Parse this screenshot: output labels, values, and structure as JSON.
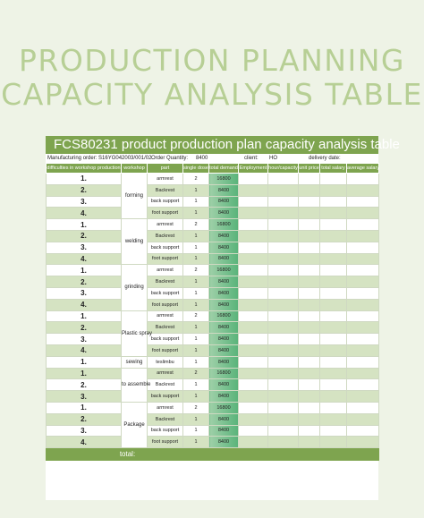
{
  "title": {
    "line1": "PRODUCTION PLANNING",
    "line2": "CAPACITY ANALYSIS TABLE"
  },
  "sheet": {
    "heading": "FCS80231 product production plan capacity analysis table",
    "info": {
      "manufacturing_order": "Manufacturing order: S16YG042003/001/02",
      "order_quantity": "Order Quantity:",
      "order_quantity_value": "8400",
      "client": "client:",
      "client_value": "HO",
      "delivery_date": "delivery date:"
    },
    "columns": [
      "difficulties in workshop production",
      "workshop",
      "part",
      "single dose",
      "total demand",
      "Employment",
      "hour/capacity",
      "unit price",
      "total salary",
      "average salary"
    ],
    "total_label": "total:",
    "groups": [
      {
        "workshop": "forming",
        "rows": [
          {
            "idx": "1.",
            "part": "armrest",
            "dose": "2",
            "demand": "16800"
          },
          {
            "idx": "2.",
            "part": "Backrest",
            "dose": "1",
            "demand": "8400"
          },
          {
            "idx": "3.",
            "part": "back support",
            "dose": "1",
            "demand": "8400"
          },
          {
            "idx": "4.",
            "part": "foot support",
            "dose": "1",
            "demand": "8400"
          }
        ]
      },
      {
        "workshop": "welding",
        "rows": [
          {
            "idx": "1.",
            "part": "armrest",
            "dose": "2",
            "demand": "16800"
          },
          {
            "idx": "2.",
            "part": "Backrest",
            "dose": "1",
            "demand": "8400"
          },
          {
            "idx": "3.",
            "part": "back support",
            "dose": "1",
            "demand": "8400"
          },
          {
            "idx": "4.",
            "part": "foot support",
            "dose": "1",
            "demand": "8400"
          }
        ]
      },
      {
        "workshop": "grinding",
        "rows": [
          {
            "idx": "1.",
            "part": "armrest",
            "dose": "2",
            "demand": "16800"
          },
          {
            "idx": "2.",
            "part": "Backrest",
            "dose": "1",
            "demand": "8400"
          },
          {
            "idx": "3.",
            "part": "back support",
            "dose": "1",
            "demand": "8400"
          },
          {
            "idx": "4.",
            "part": "foot support",
            "dose": "1",
            "demand": "8400"
          }
        ]
      },
      {
        "workshop": "Plastic spray",
        "rows": [
          {
            "idx": "1.",
            "part": "armrest",
            "dose": "2",
            "demand": "16800"
          },
          {
            "idx": "2.",
            "part": "Backrest",
            "dose": "1",
            "demand": "8400"
          },
          {
            "idx": "3.",
            "part": "back support",
            "dose": "1",
            "demand": "8400"
          },
          {
            "idx": "4.",
            "part": "foot support",
            "dose": "1",
            "demand": "8400"
          }
        ]
      },
      {
        "workshop": "sewing",
        "rows": [
          {
            "idx": "1.",
            "part": "teslimbu",
            "dose": "1",
            "demand": "8400"
          }
        ]
      },
      {
        "workshop": "to assemble",
        "rows": [
          {
            "idx": "1.",
            "part": "armrest",
            "dose": "2",
            "demand": "16800"
          },
          {
            "idx": "2.",
            "part": "Backrest",
            "dose": "1",
            "demand": "8400"
          },
          {
            "idx": "3.",
            "part": "back support",
            "dose": "1",
            "demand": "8400"
          }
        ]
      },
      {
        "workshop": "Package",
        "rows": [
          {
            "idx": "1.",
            "part": "armrest",
            "dose": "2",
            "demand": "16800"
          },
          {
            "idx": "2.",
            "part": "Backrest",
            "dose": "1",
            "demand": "8400"
          },
          {
            "idx": "3.",
            "part": "back support",
            "dose": "1",
            "demand": "8400"
          },
          {
            "idx": "4.",
            "part": "foot support",
            "dose": "1",
            "demand": "8400"
          }
        ]
      }
    ]
  }
}
